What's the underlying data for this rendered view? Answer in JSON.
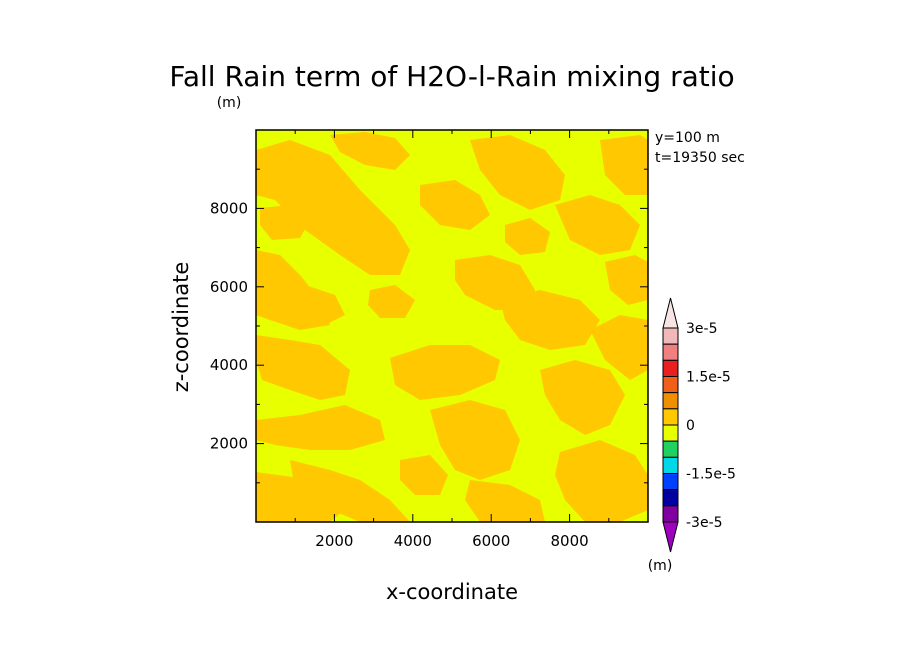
{
  "chart_data": {
    "type": "heatmap",
    "title": "Fall Rain term of H2O-l-Rain mixing ratio",
    "title_units": "(m)",
    "xlabel": "x-coordinate",
    "ylabel": "z-coordinate",
    "xlim": [
      0,
      10000
    ],
    "ylim": [
      0,
      10000
    ],
    "x_ticks": [
      2000,
      4000,
      6000,
      8000
    ],
    "y_ticks": [
      2000,
      4000,
      6000,
      8000
    ],
    "annotations": [
      "y=100 m",
      "t=19350 sec"
    ],
    "colorbar": {
      "units": "(m)",
      "levels": [
        -3e-05,
        -2.25e-05,
        -1.5e-05,
        -7.5e-06,
        0,
        7.5e-06,
        1.5e-05,
        2.25e-05,
        3e-05
      ],
      "labels": [
        "3e-5",
        "1.5e-5",
        "0",
        "-1.5e-5",
        "-3e-5"
      ],
      "colors_top_to_bottom": [
        "#f0b8b8",
        "#f08080",
        "#e82020",
        "#f06018",
        "#f09000",
        "#ffc800",
        "#e8ff00",
        "#20d060",
        "#00d8e8",
        "#0040ff",
        "#0000a0",
        "#8000a0"
      ],
      "arrow_colors": {
        "top": "#f8e4e4",
        "bottom": "#a000c0"
      }
    },
    "field_values": {
      "low_band": 0,
      "high_band": 7.5e-06
    },
    "field_colors": {
      "low_band": "#e8ff00",
      "high_band": "#ffc800"
    }
  }
}
